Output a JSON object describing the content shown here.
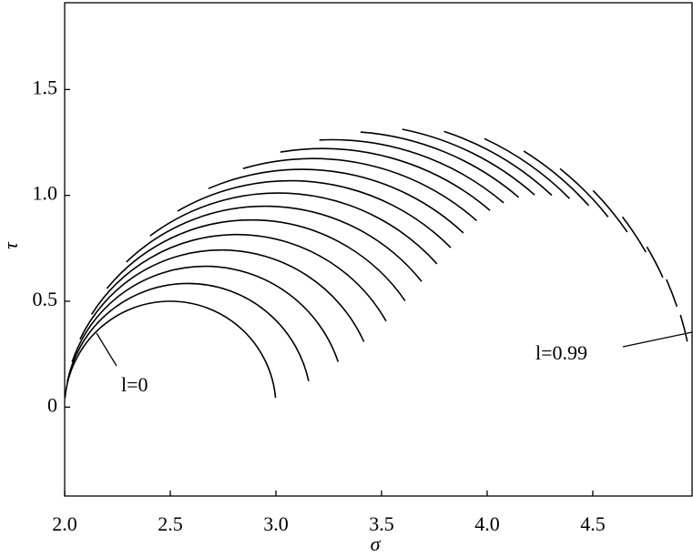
{
  "chart_data": {
    "type": "arcs",
    "x_label": "σ",
    "y_label": "τ",
    "xlim": [
      2.0,
      4.97
    ],
    "ylim": [
      -0.42,
      1.91
    ],
    "xticks": [
      {
        "value": 2.0,
        "label": "2.0"
      },
      {
        "value": 2.5,
        "label": "2.5"
      },
      {
        "value": 3.0,
        "label": "3.0"
      },
      {
        "value": 3.5,
        "label": "3.5"
      },
      {
        "value": 4.0,
        "label": "4.0"
      },
      {
        "value": 4.5,
        "label": "4.5"
      }
    ],
    "yticks": [
      0,
      0.5,
      {
        "value": 1.0,
        "label": "1.0"
      },
      1.5
    ],
    "annotations": [
      "l=0",
      "l=0.99"
    ],
    "color": "#000000",
    "arcs": [
      {
        "center": 2.5,
        "radius": 0.5,
        "start_angle": 175,
        "end_angle": 5
      },
      {
        "center": 2.584,
        "radius": 0.584,
        "start_angle": 168.1,
        "end_angle": 12.1
      },
      {
        "center": 2.665,
        "radius": 0.665,
        "start_angle": 161.3,
        "end_angle": 18.8
      },
      {
        "center": 2.742,
        "radius": 0.742,
        "start_angle": 154.4,
        "end_angle": 24.6
      },
      {
        "center": 2.815,
        "radius": 0.815,
        "start_angle": 147.5,
        "end_angle": 29.9
      },
      {
        "center": 2.884,
        "radius": 0.884,
        "start_angle": 140.7,
        "end_angle": 34.6
      },
      {
        "center": 2.949,
        "radius": 0.949,
        "start_angle": 133.8,
        "end_angle": 38.7
      },
      {
        "center": 3.011,
        "radius": 1.011,
        "start_angle": 126.9,
        "end_angle": 42.0
      },
      {
        "center": 3.069,
        "radius": 1.069,
        "start_angle": 120.0,
        "end_angle": 44.8
      },
      {
        "center": 3.123,
        "radius": 1.123,
        "start_angle": 113.2,
        "end_angle": 47.1
      },
      {
        "center": 3.174,
        "radius": 1.174,
        "start_angle": 106.3,
        "end_angle": 48.6
      },
      {
        "center": 3.221,
        "radius": 1.221,
        "start_angle": 99.4,
        "end_angle": 49.5
      },
      {
        "center": 3.263,
        "radius": 1.263,
        "start_angle": 92.6,
        "end_angle": 49.8
      },
      {
        "center": 3.303,
        "radius": 1.303,
        "start_angle": 85.7,
        "end_angle": 49.5
      },
      {
        "center": 3.338,
        "radius": 1.338,
        "start_angle": 78.8,
        "end_angle": 48.5
      },
      {
        "center": 3.37,
        "radius": 1.37,
        "start_angle": 71.9,
        "end_angle": 46.9
      },
      {
        "center": 3.398,
        "radius": 1.398,
        "start_angle": 65.1,
        "end_angle": 44.8
      },
      {
        "center": 3.423,
        "radius": 1.423,
        "start_angle": 58.2,
        "end_angle": 42.0
      },
      {
        "center": 3.443,
        "radius": 1.443,
        "start_angle": 51.3,
        "end_angle": 38.5
      },
      {
        "center": 3.46,
        "radius": 1.46,
        "start_angle": 44.5,
        "end_angle": 34.5
      },
      {
        "center": 3.473,
        "radius": 1.473,
        "start_angle": 37.6,
        "end_angle": 29.8
      },
      {
        "center": 3.482,
        "radius": 1.482,
        "start_angle": 30.7,
        "end_angle": 24.4
      },
      {
        "center": 3.488,
        "radius": 1.488,
        "start_angle": 23.9,
        "end_angle": 18.6
      },
      {
        "center": 3.49,
        "radius": 1.49,
        "start_angle": 17,
        "end_angle": 12
      }
    ]
  }
}
